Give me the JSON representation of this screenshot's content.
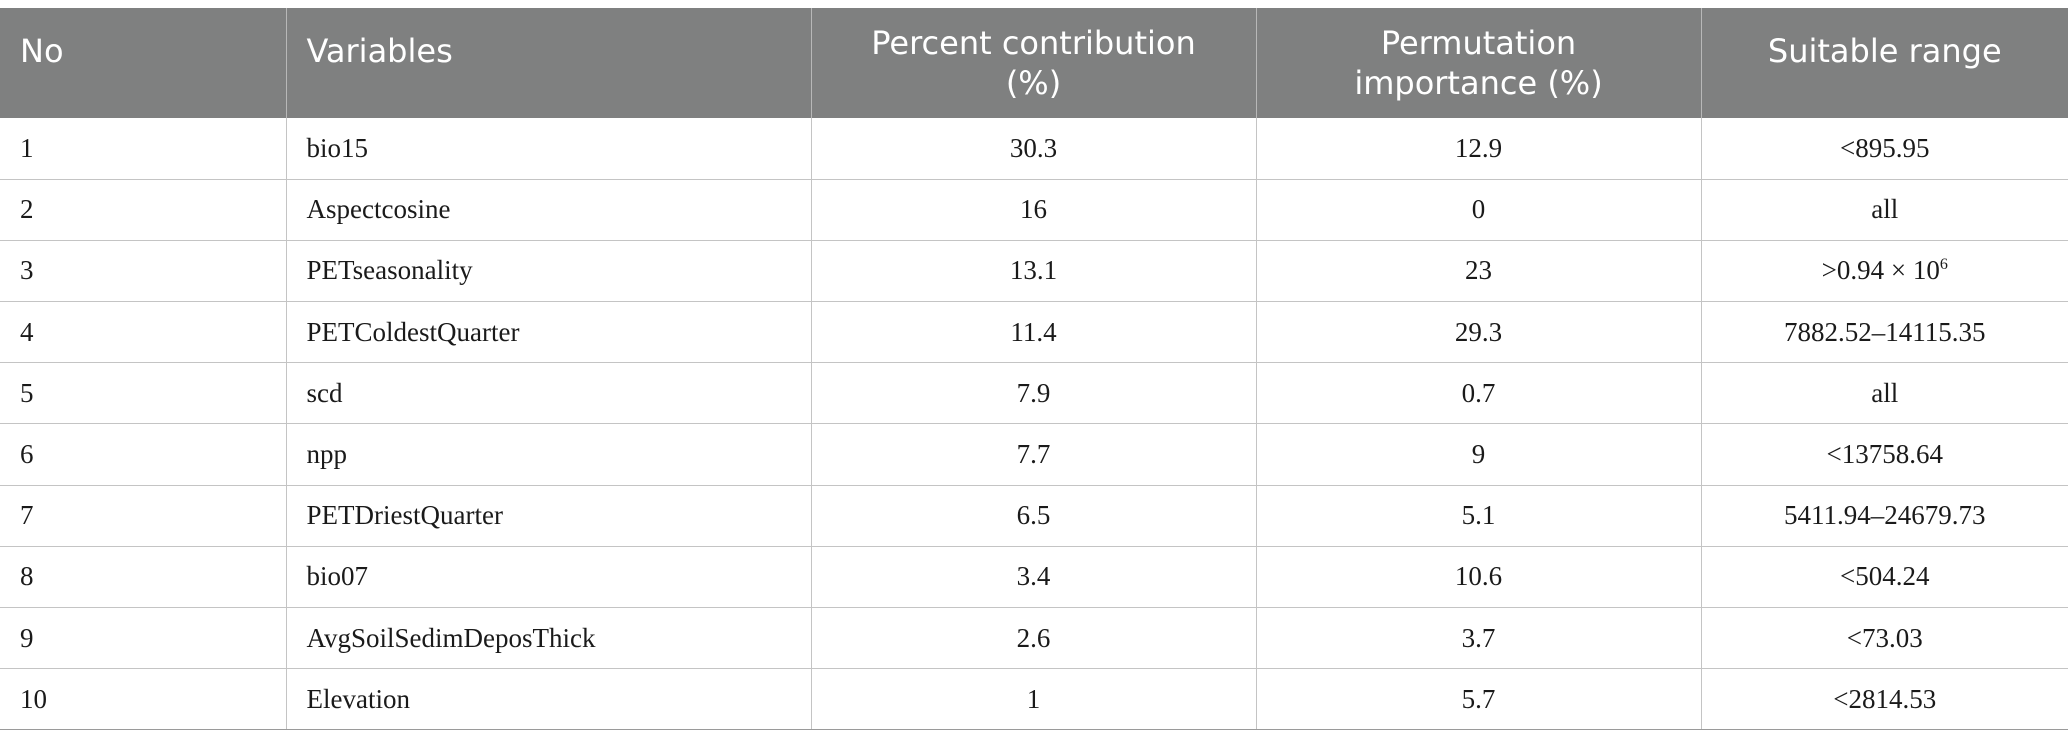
{
  "table": {
    "headers": {
      "no": "No",
      "variables": "Variables",
      "percent_contribution_line1": "Percent contribution",
      "percent_contribution_line2": "(%)",
      "permutation_line1": "Permutation",
      "permutation_line2": "importance (%)",
      "suitable_range": "Suitable range"
    },
    "rows": [
      {
        "no": "1",
        "variable": "bio15",
        "percent": "30.3",
        "permutation": "12.9",
        "range": "<895.95"
      },
      {
        "no": "2",
        "variable": "Aspectcosine",
        "percent": "16",
        "permutation": "0",
        "range": "all"
      },
      {
        "no": "3",
        "variable": "PETseasonality",
        "percent": "13.1",
        "permutation": "23",
        "range": ">0.94 × 10",
        "range_sup": "6"
      },
      {
        "no": "4",
        "variable": "PETColdestQuarter",
        "percent": "11.4",
        "permutation": "29.3",
        "range": "7882.52–14115.35"
      },
      {
        "no": "5",
        "variable": "scd",
        "percent": "7.9",
        "permutation": "0.7",
        "range": "all"
      },
      {
        "no": "6",
        "variable": "npp",
        "percent": "7.7",
        "permutation": "9",
        "range": "<13758.64"
      },
      {
        "no": "7",
        "variable": "PETDriestQuarter",
        "percent": "6.5",
        "permutation": "5.1",
        "range": "5411.94–24679.73"
      },
      {
        "no": "8",
        "variable": "bio07",
        "percent": "3.4",
        "permutation": "10.6",
        "range": "<504.24"
      },
      {
        "no": "9",
        "variable": "AvgSoilSedimDeposThick",
        "percent": "2.6",
        "permutation": "3.7",
        "range": "<73.03"
      },
      {
        "no": "10",
        "variable": "Elevation",
        "percent": "1",
        "permutation": "5.7",
        "range": "<2814.53"
      }
    ]
  }
}
